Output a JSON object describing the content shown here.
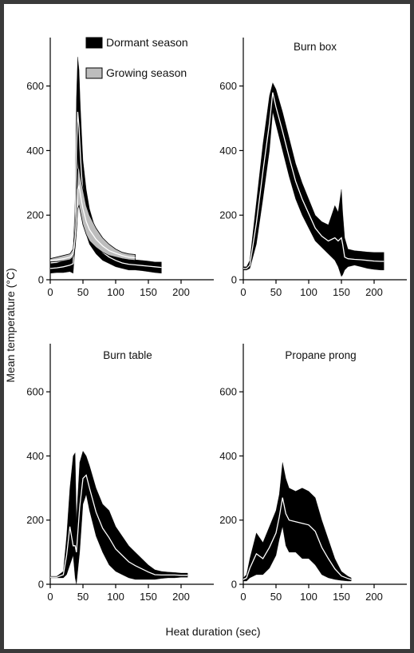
{
  "figure": {
    "ylabel": "Mean temperature (°C)",
    "xlabel": "Heat duration (sec)"
  },
  "colors": {
    "background_frame": "#3a3a3a",
    "dormant_band": "#000000",
    "growing_band": "#bdbdbd",
    "mean_line": "#ffffff",
    "axis": "#000000"
  },
  "chart_data": [
    {
      "type": "area",
      "panel": "top-left",
      "title": "",
      "xlim": [
        0,
        250
      ],
      "ylim": [
        0,
        750
      ],
      "xticks": [
        0,
        50,
        100,
        150,
        200
      ],
      "yticks": [
        0,
        200,
        400,
        600
      ],
      "legend": {
        "placement": "top-right",
        "entries": [
          {
            "label": "Dormant season",
            "color": "#000000"
          },
          {
            "label": "Growing season",
            "color": "#bdbdbd"
          }
        ]
      },
      "series": [
        {
          "name": "Dormant season",
          "color": "#000000",
          "x": [
            0,
            10,
            20,
            30,
            35,
            38,
            40,
            42,
            44,
            46,
            48,
            50,
            55,
            60,
            70,
            80,
            90,
            100,
            110,
            120,
            130,
            140,
            150,
            160,
            170
          ],
          "lower": [
            20,
            22,
            22,
            25,
            20,
            100,
            250,
            380,
            300,
            250,
            210,
            180,
            140,
            110,
            80,
            60,
            50,
            40,
            35,
            30,
            30,
            28,
            25,
            22,
            20
          ],
          "upper": [
            50,
            52,
            58,
            65,
            80,
            250,
            560,
            690,
            650,
            540,
            450,
            370,
            280,
            220,
            150,
            115,
            90,
            80,
            70,
            65,
            62,
            60,
            58,
            55,
            55
          ],
          "mean": [
            35,
            37,
            40,
            45,
            50,
            175,
            400,
            520,
            470,
            390,
            320,
            270,
            200,
            160,
            110,
            85,
            70,
            60,
            52,
            48,
            46,
            44,
            42,
            40,
            38
          ]
        },
        {
          "name": "Growing season",
          "color": "#bdbdbd",
          "x": [
            0,
            10,
            20,
            30,
            35,
            38,
            40,
            42,
            44,
            46,
            48,
            50,
            55,
            60,
            70,
            80,
            90,
            100,
            110,
            120,
            130
          ],
          "lower": [
            55,
            56,
            58,
            62,
            70,
            100,
            150,
            220,
            230,
            210,
            190,
            170,
            140,
            120,
            100,
            85,
            75,
            70,
            65,
            62,
            60
          ],
          "upper": [
            65,
            70,
            75,
            80,
            95,
            160,
            230,
            340,
            350,
            320,
            300,
            280,
            230,
            200,
            160,
            130,
            110,
            95,
            85,
            80,
            78
          ],
          "mean": [
            60,
            62,
            65,
            70,
            80,
            130,
            190,
            280,
            290,
            265,
            240,
            220,
            180,
            155,
            125,
            105,
            90,
            82,
            75,
            70,
            68
          ]
        }
      ]
    },
    {
      "type": "area",
      "panel": "top-right",
      "title": "Burn box",
      "xlim": [
        0,
        250
      ],
      "ylim": [
        0,
        750
      ],
      "xticks": [
        0,
        50,
        100,
        150,
        200
      ],
      "yticks": [
        0,
        200,
        400,
        600
      ],
      "series": [
        {
          "color": "#000000",
          "x": [
            0,
            5,
            10,
            20,
            30,
            40,
            45,
            50,
            60,
            70,
            80,
            90,
            100,
            110,
            120,
            130,
            135,
            140,
            145,
            150,
            152,
            155,
            160,
            170,
            180,
            190,
            200,
            210,
            215
          ],
          "lower": [
            30,
            30,
            35,
            110,
            250,
            400,
            520,
            480,
            400,
            320,
            250,
            200,
            160,
            120,
            100,
            80,
            70,
            60,
            40,
            10,
            15,
            30,
            40,
            45,
            40,
            35,
            32,
            30,
            30
          ],
          "upper": [
            40,
            40,
            60,
            240,
            420,
            570,
            610,
            590,
            520,
            440,
            360,
            300,
            250,
            200,
            180,
            170,
            200,
            230,
            210,
            280,
            210,
            130,
            95,
            90,
            88,
            86,
            85,
            85,
            85
          ],
          "mean": [
            35,
            35,
            45,
            175,
            335,
            485,
            580,
            535,
            460,
            380,
            305,
            250,
            205,
            160,
            135,
            120,
            125,
            130,
            120,
            130,
            110,
            70,
            65,
            63,
            62,
            60,
            58,
            57,
            57
          ]
        }
      ]
    },
    {
      "type": "area",
      "panel": "bottom-left",
      "title": "Burn table",
      "xlim": [
        0,
        250
      ],
      "ylim": [
        0,
        750
      ],
      "xticks": [
        0,
        50,
        100,
        150,
        200
      ],
      "yticks": [
        0,
        200,
        400,
        600
      ],
      "series": [
        {
          "color": "#000000",
          "x": [
            0,
            10,
            20,
            25,
            30,
            35,
            38,
            40,
            45,
            50,
            55,
            60,
            70,
            80,
            90,
            100,
            110,
            120,
            130,
            140,
            150,
            160,
            170,
            180,
            190,
            200,
            210
          ],
          "lower": [
            20,
            20,
            20,
            30,
            60,
            90,
            20,
            0,
            100,
            250,
            280,
            230,
            150,
            100,
            60,
            40,
            30,
            20,
            15,
            15,
            15,
            15,
            18,
            20,
            20,
            22,
            22
          ],
          "upper": [
            25,
            25,
            40,
            150,
            300,
            400,
            410,
            200,
            380,
            415,
            400,
            370,
            300,
            250,
            230,
            180,
            150,
            120,
            100,
            80,
            60,
            45,
            40,
            38,
            37,
            35,
            35
          ],
          "mean": [
            22,
            22,
            30,
            90,
            180,
            120,
            120,
            100,
            240,
            330,
            340,
            300,
            225,
            175,
            145,
            110,
            90,
            70,
            58,
            48,
            38,
            30,
            29,
            29,
            29,
            28,
            28
          ]
        }
      ]
    },
    {
      "type": "area",
      "panel": "bottom-right",
      "title": "Propane prong",
      "xlim": [
        0,
        250
      ],
      "ylim": [
        0,
        750
      ],
      "xticks": [
        0,
        50,
        100,
        150,
        200
      ],
      "yticks": [
        0,
        200,
        400,
        600
      ],
      "series": [
        {
          "color": "#000000",
          "x": [
            0,
            5,
            10,
            20,
            30,
            40,
            50,
            55,
            60,
            65,
            70,
            80,
            90,
            100,
            110,
            120,
            130,
            140,
            150,
            160,
            165
          ],
          "lower": [
            10,
            10,
            20,
            30,
            30,
            50,
            90,
            140,
            180,
            120,
            100,
            100,
            80,
            80,
            60,
            30,
            20,
            15,
            12,
            10,
            10
          ],
          "upper": [
            20,
            30,
            80,
            160,
            130,
            180,
            230,
            280,
            380,
            330,
            300,
            290,
            300,
            290,
            270,
            200,
            140,
            80,
            40,
            25,
            20
          ],
          "mean": [
            15,
            20,
            50,
            95,
            80,
            115,
            160,
            210,
            270,
            220,
            200,
            195,
            190,
            185,
            165,
            115,
            80,
            48,
            26,
            18,
            15
          ]
        }
      ]
    }
  ]
}
